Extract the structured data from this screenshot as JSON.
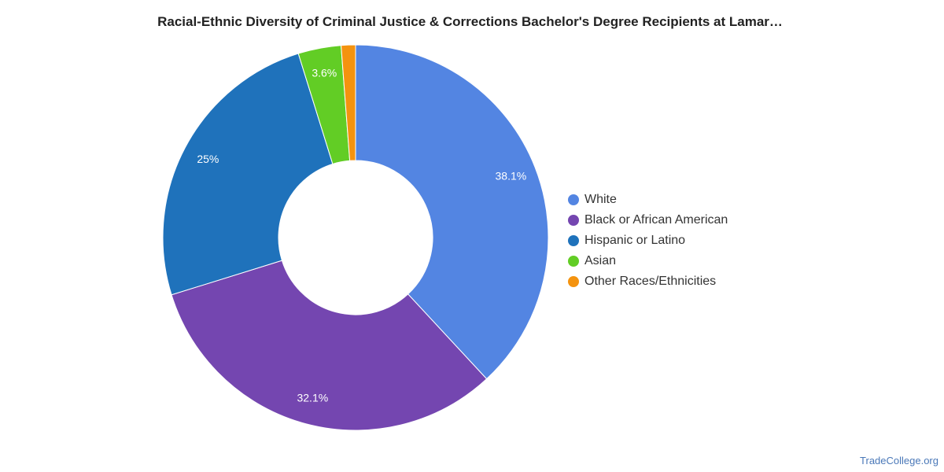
{
  "chart_data": {
    "type": "pie",
    "title": "Racial-Ethnic Diversity of Criminal Justice & Corrections Bachelor's Degree Recipients at Lamar…",
    "series": [
      {
        "name": "White",
        "value": 38.1,
        "label": "38.1%",
        "color": "#5385e2"
      },
      {
        "name": "Black or African American",
        "value": 32.1,
        "label": "32.1%",
        "color": "#7446b0"
      },
      {
        "name": "Hispanic or Latino",
        "value": 25,
        "label": "25%",
        "color": "#1f72bb"
      },
      {
        "name": "Asian",
        "value": 3.6,
        "label": "3.6%",
        "color": "#62cd25"
      },
      {
        "name": "Other Races/Ethnicities",
        "value": 1.2,
        "label": "",
        "color": "#f4930f"
      }
    ],
    "legend_position": "right"
  },
  "watermark": "TradeCollege.org"
}
